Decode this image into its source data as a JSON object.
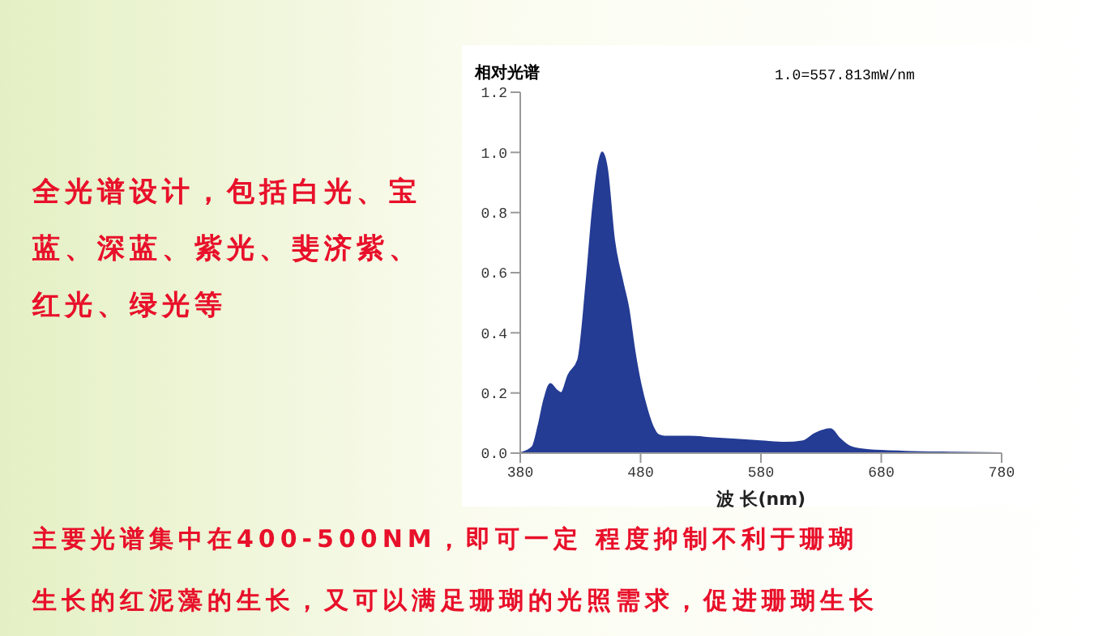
{
  "chart_data": {
    "type": "area",
    "title": "相对光谱",
    "xlabel": "波 长(nm)",
    "annotations": [
      "1.0=557.813mW/nm",
      "全光谱设计，包括白光、宝蓝、深蓝、紫光、斐济紫、红光、绿光等",
      "主要光谱集中在400-500NM，即可一定 程度抑制不利于珊瑚",
      "生长的红泥藻的生长，又可以满足珊瑚的光照需求，促进珊瑚生长"
    ],
    "x": [
      380,
      390,
      395,
      400,
      405,
      410,
      414,
      420,
      428,
      435,
      440,
      445,
      448,
      452,
      458,
      465,
      470,
      475,
      480,
      485,
      490,
      495,
      500,
      520,
      540,
      560,
      580,
      600,
      615,
      625,
      638,
      645,
      655,
      670,
      700,
      740,
      780
    ],
    "series": [
      {
        "color": "#243c94",
        "values": [
          0,
          0.02,
          0.09,
          0.18,
          0.23,
          0.21,
          0.2,
          0.26,
          0.31,
          0.57,
          0.8,
          0.96,
          1.0,
          0.95,
          0.71,
          0.57,
          0.48,
          0.34,
          0.23,
          0.15,
          0.09,
          0.06,
          0.055,
          0.055,
          0.05,
          0.045,
          0.04,
          0.035,
          0.04,
          0.065,
          0.08,
          0.05,
          0.02,
          0.01,
          0.005,
          0.002,
          0
        ]
      }
    ],
    "xlim": [
      380,
      780
    ],
    "xticks": [
      380,
      480,
      580,
      680,
      780
    ],
    "ylim": [
      0,
      1.2
    ],
    "yticks": [
      {
        "value": 0,
        "label": "0.0"
      },
      {
        "value": 0.2,
        "label": "0.2"
      },
      {
        "value": 0.4,
        "label": "0.4"
      },
      {
        "value": 0.6,
        "label": "0.6"
      },
      {
        "value": 0.8,
        "label": "0.8"
      },
      {
        "value": 1,
        "label": "1.0"
      },
      {
        "value": 1.2,
        "label": "1.2"
      }
    ],
    "grid": false,
    "legend": false,
    "marker": "none"
  }
}
